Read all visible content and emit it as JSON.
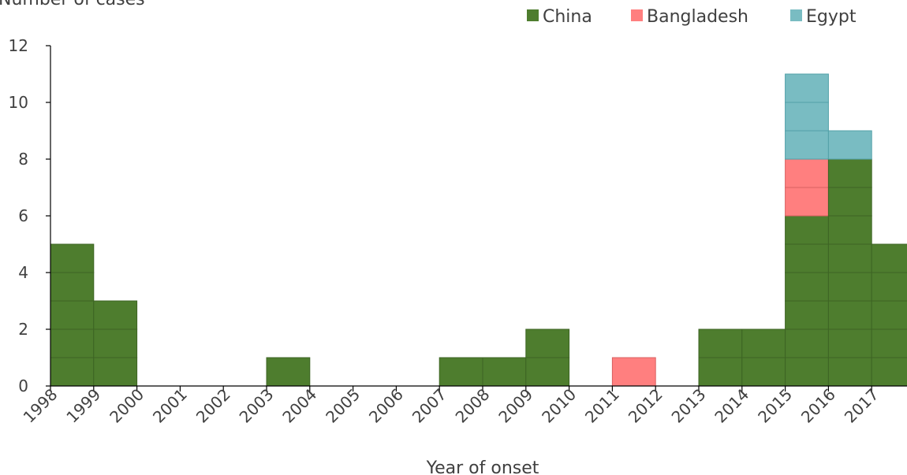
{
  "chart_data": {
    "type": "bar",
    "stacked": true,
    "unit_cells": true,
    "title": "",
    "ylabel": "Number of cases",
    "xlabel": "Year of onset",
    "ylim": [
      0,
      12
    ],
    "yticks": [
      0,
      2,
      4,
      6,
      8,
      10,
      12
    ],
    "x_tick_labels": [
      "1998",
      "1999",
      "2000",
      "2001",
      "2002",
      "2003",
      "2004",
      "2005",
      "2006",
      "2007",
      "2008",
      "2009",
      "2010",
      "2011",
      "2012",
      "2013",
      "2014",
      "2015",
      "2016",
      "2017"
    ],
    "grid": false,
    "legend_position": "top-right",
    "bins": [
      {
        "start": "1998",
        "end": "1999"
      },
      {
        "start": "1999",
        "end": "2000"
      },
      {
        "start": "2000",
        "end": "2001"
      },
      {
        "start": "2001",
        "end": "2002"
      },
      {
        "start": "2002",
        "end": "2003"
      },
      {
        "start": "2003",
        "end": "2004"
      },
      {
        "start": "2004",
        "end": "2005"
      },
      {
        "start": "2005",
        "end": "2006"
      },
      {
        "start": "2006",
        "end": "2007"
      },
      {
        "start": "2007",
        "end": "2008"
      },
      {
        "start": "2008",
        "end": "2009"
      },
      {
        "start": "2009",
        "end": "2010"
      },
      {
        "start": "2010",
        "end": "2011"
      },
      {
        "start": "2011",
        "end": "2012"
      },
      {
        "start": "2012",
        "end": "2013"
      },
      {
        "start": "2013",
        "end": "2014"
      },
      {
        "start": "2014",
        "end": "2015"
      },
      {
        "start": "2015",
        "end": "2016"
      },
      {
        "start": "2016",
        "end": "2017"
      },
      {
        "start": "2017",
        "end": "2018"
      }
    ],
    "series": [
      {
        "name": "China",
        "color": "#4e7d2e",
        "edge": "#3d6424",
        "values": [
          5,
          3,
          0,
          0,
          0,
          1,
          0,
          0,
          0,
          1,
          1,
          2,
          0,
          0,
          0,
          2,
          2,
          6,
          8,
          5
        ]
      },
      {
        "name": "Bangladesh",
        "color": "#ff7f7f",
        "edge": "#d96060",
        "values": [
          0,
          0,
          0,
          0,
          0,
          0,
          0,
          0,
          0,
          0,
          0,
          0,
          0,
          1,
          0,
          0,
          0,
          2,
          0,
          0
        ]
      },
      {
        "name": "Egypt",
        "color": "#79bcc2",
        "edge": "#52a0a8",
        "values": [
          0,
          0,
          0,
          0,
          0,
          0,
          0,
          0,
          0,
          0,
          0,
          0,
          0,
          0,
          0,
          0,
          0,
          3,
          1,
          0
        ]
      }
    ]
  }
}
